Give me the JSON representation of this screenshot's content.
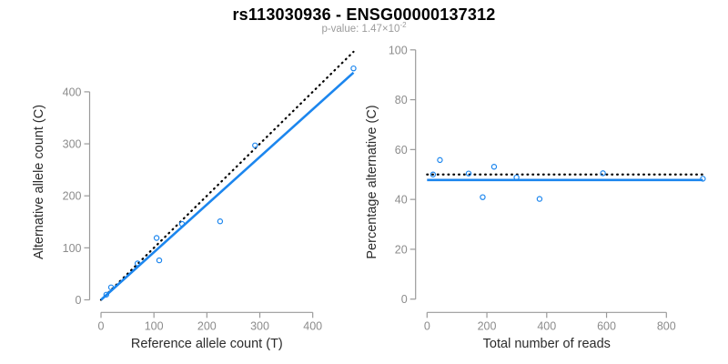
{
  "title": "rs113030936 - ENSG00000137312",
  "subtitle": {
    "text": "p-value: 1.47×10",
    "exponent": "-2"
  },
  "colors": {
    "accent_blue": "#1C86EE",
    "identity_line": "#000000",
    "axis_line": "#9a9a9a",
    "tick_label": "#8c8c8c",
    "axis_label": "#2b2b2b",
    "subtitle_gray": "#9b9b9b",
    "title_black": "#000000"
  },
  "chart_data": [
    {
      "type": "scatter",
      "panel": "left",
      "xlabel": "Reference allele count (T)",
      "ylabel": "Alternative allele count (C)",
      "xticks": [
        0,
        100,
        200,
        300,
        400
      ],
      "yticks": [
        0,
        100,
        200,
        300,
        400
      ],
      "xlim": [
        0,
        477
      ],
      "ylim": [
        0,
        462
      ],
      "grid": false,
      "legend": "none",
      "marker": "open-circle",
      "points": [
        [
          10,
          10
        ],
        [
          19,
          24
        ],
        [
          69,
          70
        ],
        [
          105,
          119
        ],
        [
          110,
          76
        ],
        [
          153,
          146
        ],
        [
          225,
          151
        ],
        [
          291,
          297
        ],
        [
          477,
          445
        ]
      ],
      "lines": [
        {
          "name": "identity-line",
          "style": "dotted",
          "color": "#000000",
          "slope": 1,
          "intercept": 0,
          "x_range": [
            0,
            477
          ]
        },
        {
          "name": "fit-line",
          "style": "solid",
          "color": "#1C86EE",
          "slope": 0.916,
          "intercept": 0,
          "x_range": [
            0,
            477
          ]
        }
      ]
    },
    {
      "type": "scatter",
      "panel": "right",
      "xlabel": "Total number of reads",
      "ylabel": "Percentage alternative (C)",
      "xticks": [
        0,
        200,
        400,
        600,
        800
      ],
      "yticks": [
        0,
        20,
        40,
        60,
        80,
        100
      ],
      "xlim": [
        0,
        922
      ],
      "ylim": [
        0,
        100
      ],
      "grid": false,
      "legend": "none",
      "marker": "open-circle",
      "points": [
        [
          20,
          50.0
        ],
        [
          43,
          55.8
        ],
        [
          139,
          50.4
        ],
        [
          186,
          40.9
        ],
        [
          224,
          53.1
        ],
        [
          299,
          48.8
        ],
        [
          376,
          40.2
        ],
        [
          588,
          50.5
        ],
        [
          922,
          48.3
        ]
      ],
      "lines": [
        {
          "name": "expected-50pct-line",
          "style": "dotted",
          "color": "#000000",
          "y": 50,
          "x_range": [
            0,
            922
          ]
        },
        {
          "name": "fit-line",
          "style": "solid",
          "color": "#1C86EE",
          "y": 47.8,
          "x_range": [
            0,
            922
          ]
        }
      ]
    }
  ]
}
